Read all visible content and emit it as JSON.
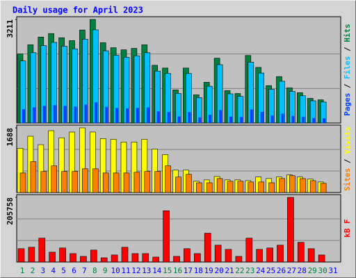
{
  "chart_data": [
    {
      "type": "bar",
      "title": "Daily usage for April 2023",
      "legend_separator": " / ",
      "ylim": [
        0,
        3211
      ],
      "yticks": [
        3211
      ],
      "series": [
        {
          "name": "Hits",
          "color": "#008040",
          "values": [
            2140,
            2425,
            2665,
            2775,
            2645,
            2555,
            2885,
            3211,
            2490,
            2335,
            2270,
            2315,
            2425,
            1790,
            1705,
            1025,
            1705,
            875,
            1265,
            2010,
            1005,
            915,
            2095,
            1725,
            1160,
            1440,
            1090,
            940,
            765,
            720,
            null
          ]
        },
        {
          "name": "Files",
          "color": "#00c0ff",
          "values": [
            1925,
            2180,
            2400,
            2500,
            2380,
            2300,
            2600,
            2890,
            2240,
            2100,
            2040,
            2085,
            2180,
            1610,
            1535,
            920,
            1535,
            790,
            1140,
            1810,
            905,
            825,
            1885,
            1550,
            1045,
            1295,
            980,
            845,
            690,
            650,
            null
          ]
        },
        {
          "name": "Pages",
          "color": "#0040ff",
          "values": [
            430,
            485,
            530,
            555,
            530,
            510,
            575,
            640,
            500,
            465,
            455,
            465,
            485,
            360,
            340,
            205,
            340,
            175,
            255,
            400,
            200,
            185,
            420,
            345,
            230,
            290,
            220,
            190,
            155,
            145,
            null
          ]
        }
      ]
    },
    {
      "type": "bar",
      "legend_separator": " / ",
      "ylim": [
        0,
        1688
      ],
      "yticks": [
        1688
      ],
      "series": [
        {
          "name": "Visits",
          "color": "#ffff00",
          "values": [
            1155,
            1470,
            1250,
            1615,
            1430,
            1580,
            1688,
            1580,
            1410,
            1390,
            1320,
            1320,
            1390,
            1135,
            990,
            585,
            585,
            295,
            330,
            420,
            330,
            330,
            310,
            405,
            365,
            405,
            460,
            405,
            350,
            275,
            null
          ]
        },
        {
          "name": "Sites",
          "color": "#ff8000",
          "values": [
            510,
            805,
            550,
            695,
            550,
            550,
            620,
            620,
            510,
            510,
            510,
            530,
            550,
            550,
            695,
            405,
            475,
            255,
            255,
            365,
            295,
            295,
            275,
            275,
            255,
            365,
            440,
            365,
            310,
            240,
            null
          ]
        }
      ]
    },
    {
      "type": "bar",
      "ylim": [
        0,
        205758
      ],
      "yticks": [
        205758
      ],
      "categories": [
        "1",
        "2",
        "3",
        "4",
        "5",
        "6",
        "7",
        "8",
        "9",
        "10",
        "11",
        "12",
        "13",
        "14",
        "15",
        "16",
        "17",
        "18",
        "19",
        "20",
        "21",
        "22",
        "23",
        "24",
        "25",
        "26",
        "27",
        "28",
        "29",
        "30",
        "31"
      ],
      "category_colors": [
        "#008040",
        "#008040",
        "#0000ff",
        "#0000ff",
        "#0000ff",
        "#0000ff",
        "#0000ff",
        "#008040",
        "#008040",
        "#0000ff",
        "#0000ff",
        "#0000ff",
        "#0000ff",
        "#0000ff",
        "#008040",
        "#008040",
        "#0000ff",
        "#0000ff",
        "#0000ff",
        "#0000ff",
        "#0000ff",
        "#008040",
        "#008040",
        "#0000ff",
        "#0000ff",
        "#0000ff",
        "#0000ff",
        "#0000ff",
        "#008040",
        "#008040",
        "#0000ff"
      ],
      "series": [
        {
          "name": "kB F",
          "color": "#ff0000",
          "values": [
            42500,
            47000,
            76000,
            31300,
            44700,
            26800,
            17900,
            38000,
            13400,
            22400,
            47000,
            26800,
            26800,
            15700,
            163200,
            17900,
            42500,
            26800,
            91700,
            53700,
            40200,
            17900,
            76000,
            40200,
            44700,
            53700,
            205758,
            62600,
            42500,
            22400,
            null
          ]
        }
      ]
    }
  ]
}
